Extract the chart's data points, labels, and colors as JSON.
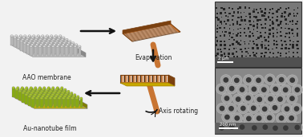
{
  "bg_color": "#f2f2f2",
  "labels": {
    "aao": "AAO membrane",
    "au": "Au-nanotube film",
    "evap": "Evaporation",
    "axis": "Axis rotating"
  },
  "label_fontsize": 5.5,
  "arrow_color": "#111111",
  "scale_text_top": "2 μm",
  "scale_text_bot": "200 nm",
  "border_color": "#444444",
  "aao_pillar": "#b8b8b8",
  "aao_slab_top": "#c0c0c0",
  "aao_slab_front": "#a0a0a0",
  "aao_slab_side": "#909090",
  "au_pillar": "#8aaa00",
  "au_slab_top": "#c8b800",
  "au_slab_front": "#a09800",
  "au_slab_side": "#807800",
  "copper": "#c87533",
  "copper_dark": "#7a4010"
}
